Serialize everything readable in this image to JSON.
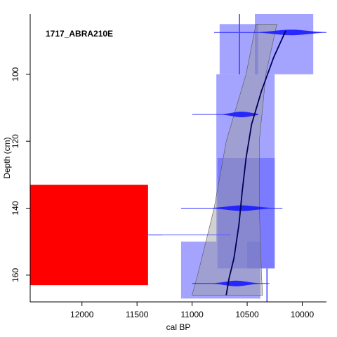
{
  "chart_data": {
    "type": "age-depth",
    "title": "1717_ABRA210E",
    "xlabel": "cal BP",
    "ylabel": "Depth (cm)",
    "xlim": [
      12470,
      9780
    ],
    "ylim": [
      168,
      82
    ],
    "x_ticks": [
      12000,
      11500,
      11000,
      10500,
      10000
    ],
    "y_ticks": [
      100,
      120,
      140,
      160
    ],
    "colors": {
      "envelope": "#999999",
      "date_box": "#5a5aff",
      "red_box": "#ff0000",
      "model_line": "#00005a",
      "date_ribbon": "#1a1aff"
    },
    "envelope": {
      "upper": [
        {
          "depth": 85,
          "age": 10230
        },
        {
          "depth": 100,
          "age": 10330
        },
        {
          "depth": 120,
          "age": 10390
        },
        {
          "depth": 140,
          "age": 10390
        },
        {
          "depth": 160,
          "age": 10370
        },
        {
          "depth": 166,
          "age": 10360
        }
      ],
      "lower": [
        {
          "depth": 85,
          "age": 10420
        },
        {
          "depth": 100,
          "age": 10510
        },
        {
          "depth": 120,
          "age": 10690
        },
        {
          "depth": 140,
          "age": 10800
        },
        {
          "depth": 160,
          "age": 10950
        },
        {
          "depth": 166,
          "age": 11000
        }
      ]
    },
    "model_line": [
      {
        "depth": 87,
        "age": 10150
      },
      {
        "depth": 95,
        "age": 10260
      },
      {
        "depth": 105,
        "age": 10370
      },
      {
        "depth": 115,
        "age": 10460
      },
      {
        "depth": 125,
        "age": 10510
      },
      {
        "depth": 135,
        "age": 10545
      },
      {
        "depth": 145,
        "age": 10575
      },
      {
        "depth": 155,
        "age": 10620
      },
      {
        "depth": 161,
        "age": 10665
      },
      {
        "depth": 166,
        "age": 10690
      }
    ],
    "prior_boxes": [
      {
        "age_min": 9900,
        "age_max": 10430,
        "depth_min": 82,
        "depth_max": 100,
        "color": "date_box"
      },
      {
        "age_min": 10400,
        "age_max": 10750,
        "depth_min": 85,
        "depth_max": 100,
        "color": "date_box"
      },
      {
        "age_min": 10250,
        "age_max": 10780,
        "depth_min": 100,
        "depth_max": 150,
        "color": "date_box"
      },
      {
        "age_min": 10250,
        "age_max": 10770,
        "depth_min": 125,
        "depth_max": 158,
        "color": "date_box"
      },
      {
        "age_min": 10250,
        "age_max": 10500,
        "depth_min": 150,
        "depth_max": 158,
        "color": "date_box"
      },
      {
        "age_min": 10380,
        "age_max": 11100,
        "depth_min": 150,
        "depth_max": 167,
        "color": "date_box"
      },
      {
        "age_min": 11400,
        "age_max": 12470,
        "depth_min": 133,
        "depth_max": 163,
        "color": "red_box"
      }
    ],
    "date_ribbons": [
      {
        "depth": 87.5,
        "age_min": 9780,
        "age_max": 10800,
        "peak_age": 10100
      },
      {
        "depth": 112,
        "age_min": 10400,
        "age_max": 11000,
        "peak_age": 10550
      },
      {
        "depth": 140,
        "age_min": 10180,
        "age_max": 11100,
        "peak_age": 10550
      },
      {
        "depth": 162.5,
        "age_min": 10300,
        "age_max": 11000,
        "peak_age": 10600
      }
    ],
    "extra_lines": [
      {
        "kind": "vertical",
        "age": 10570,
        "depth_min": 82,
        "depth_max": 100
      },
      {
        "kind": "vertical",
        "age": 10320,
        "depth_min": 158,
        "depth_max": 168
      },
      {
        "kind": "horizontal",
        "depth": 148,
        "age_min": 10650,
        "age_max": 11400
      },
      {
        "kind": "horizontal",
        "depth": 148,
        "age_min": 11400,
        "age_max": 11270
      }
    ]
  }
}
